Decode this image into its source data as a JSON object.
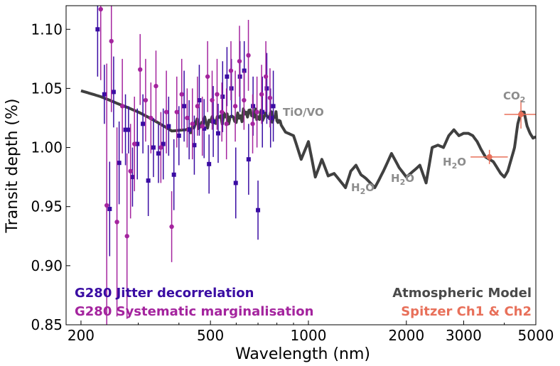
{
  "chart_data": {
    "type": "scatter",
    "xlabel": "Wavelength (nm)",
    "ylabel": "Transit depth (%)",
    "xscale": "log",
    "xlim": [
      180,
      5000
    ],
    "ylim": [
      0.85,
      1.12
    ],
    "xticks": [
      200,
      500,
      1000,
      2000,
      3000,
      5000
    ],
    "yticks": [
      0.85,
      0.9,
      0.95,
      1.0,
      1.05,
      1.1
    ],
    "ytick_labels": [
      "0.85",
      "0.90",
      "0.95",
      "1.00",
      "1.05",
      "1.10"
    ],
    "colors": {
      "jitter": "#3a0ca3",
      "marginal": "#a4249e",
      "model": "#2b2b2b",
      "spitzer": "#e8705a",
      "annotation": "#8c8c8c"
    },
    "legend": {
      "jitter": "G280 Jitter decorrelation",
      "marginal": "G280 Systematic marginalisation",
      "model": "Atmospheric Model",
      "spitzer": "Spitzer  Ch1 & Ch2"
    },
    "annotations": {
      "tio": "TiO/VO",
      "h2o_1": "H",
      "h2o_1_sub": "2",
      "h2o_1_end": "O",
      "h2o_2": "H",
      "h2o_2_sub": "2",
      "h2o_2_end": "O",
      "h2o_3": "H",
      "h2o_3_sub": "2",
      "h2o_3_end": "O",
      "co2": "CO",
      "co2_sub": "2"
    },
    "series": [
      {
        "name": "G280 Jitter decorrelation",
        "key": "jitter",
        "points": [
          [
            225,
            1.1,
            0.04
          ],
          [
            236,
            1.045,
            0.025
          ],
          [
            245,
            0.948,
            0.04
          ],
          [
            252,
            1.047,
            0.03
          ],
          [
            262,
            0.987,
            0.035
          ],
          [
            274,
            1.015,
            0.03
          ],
          [
            280,
            1.015,
            0.02
          ],
          [
            288,
            0.975,
            0.025
          ],
          [
            298,
            1.003,
            0.03
          ],
          [
            310,
            1.02,
            0.025
          ],
          [
            322,
            0.972,
            0.03
          ],
          [
            334,
            1.0,
            0.025
          ],
          [
            346,
            0.995,
            0.025
          ],
          [
            358,
            1.003,
            0.03
          ],
          [
            372,
            1.018,
            0.025
          ],
          [
            386,
            0.977,
            0.03
          ],
          [
            400,
            1.01,
            0.025
          ],
          [
            415,
            1.035,
            0.03
          ],
          [
            430,
            1.015,
            0.025
          ],
          [
            446,
            1.002,
            0.025
          ],
          [
            462,
            1.04,
            0.03
          ],
          [
            478,
            1.016,
            0.025
          ],
          [
            495,
            0.986,
            0.025
          ],
          [
            510,
            1.022,
            0.03
          ],
          [
            528,
            1.012,
            0.025
          ],
          [
            545,
            1.043,
            0.03
          ],
          [
            562,
            1.06,
            0.025
          ],
          [
            580,
            1.05,
            0.025
          ],
          [
            598,
            0.97,
            0.03
          ],
          [
            616,
            1.06,
            0.03
          ],
          [
            635,
            1.065,
            0.025
          ],
          [
            655,
            0.99,
            0.03
          ],
          [
            676,
            1.035,
            0.025
          ],
          [
            700,
            0.947,
            0.025
          ],
          [
            722,
            1.03,
            0.03
          ],
          [
            745,
            1.05,
            0.03
          ],
          [
            765,
            1.025,
            0.025
          ],
          [
            780,
            1.035,
            0.03
          ]
        ]
      },
      {
        "name": "G280 Systematic marginalisation",
        "key": "marginal",
        "points": [
          [
            230,
            1.117,
            0.06
          ],
          [
            240,
            0.951,
            0.12
          ],
          [
            248,
            1.09,
            0.06
          ],
          [
            258,
            0.937,
            0.08
          ],
          [
            268,
            1.035,
            0.04
          ],
          [
            277,
            0.925,
            0.07
          ],
          [
            284,
            0.98,
            0.04
          ],
          [
            292,
            1.003,
            0.04
          ],
          [
            304,
            1.066,
            0.03
          ],
          [
            316,
            1.04,
            0.035
          ],
          [
            328,
            1.025,
            0.03
          ],
          [
            340,
            1.052,
            0.03
          ],
          [
            352,
            1.0,
            0.03
          ],
          [
            366,
            1.03,
            0.035
          ],
          [
            380,
            0.933,
            0.03
          ],
          [
            394,
            1.03,
            0.03
          ],
          [
            408,
            1.045,
            0.03
          ],
          [
            424,
            1.025,
            0.025
          ],
          [
            440,
            1.02,
            0.03
          ],
          [
            456,
            1.035,
            0.025
          ],
          [
            472,
            1.018,
            0.025
          ],
          [
            490,
            1.06,
            0.03
          ],
          [
            506,
            1.04,
            0.025
          ],
          [
            524,
            1.045,
            0.03
          ],
          [
            542,
            1.03,
            0.025
          ],
          [
            560,
            1.02,
            0.03
          ],
          [
            578,
            1.065,
            0.025
          ],
          [
            596,
            1.035,
            0.03
          ],
          [
            614,
            1.073,
            0.03
          ],
          [
            634,
            1.04,
            0.025
          ],
          [
            654,
            1.078,
            0.03
          ],
          [
            674,
            1.02,
            0.025
          ],
          [
            695,
            1.03,
            0.03
          ],
          [
            718,
            1.045,
            0.025
          ],
          [
            740,
            1.06,
            0.03
          ],
          [
            762,
            1.042,
            0.025
          ]
        ]
      },
      {
        "name": "Spitzer  Ch1 & Ch2",
        "key": "spitzer",
        "points": [
          [
            3600,
            0.992,
            0.006,
            3150,
            4100
          ],
          [
            4500,
            1.028,
            0.012,
            4000,
            5000
          ]
        ]
      }
    ],
    "model": {
      "name": "Atmospheric Model",
      "x": [
        200,
        230,
        260,
        300,
        340,
        380,
        420,
        460,
        500,
        550,
        600,
        650,
        700,
        760,
        800,
        850,
        900,
        950,
        1000,
        1050,
        1100,
        1150,
        1200,
        1300,
        1350,
        1400,
        1450,
        1500,
        1600,
        1700,
        1800,
        1900,
        2000,
        2100,
        2200,
        2300,
        2400,
        2500,
        2600,
        2700,
        2800,
        2900,
        3000,
        3100,
        3200,
        3300,
        3400,
        3500,
        3600,
        3700,
        3800,
        3900,
        4000,
        4100,
        4200,
        4300,
        4400,
        4500,
        4600,
        4700,
        4800,
        4900,
        5000
      ],
      "y": [
        1.048,
        1.043,
        1.037,
        1.03,
        1.022,
        1.014,
        1.015,
        1.02,
        1.022,
        1.026,
        1.024,
        1.03,
        1.026,
        1.027,
        1.025,
        1.013,
        1.01,
        0.99,
        1.005,
        0.975,
        0.99,
        0.976,
        0.978,
        0.966,
        0.98,
        0.985,
        0.977,
        0.974,
        0.966,
        0.98,
        0.995,
        0.983,
        0.975,
        0.98,
        0.985,
        0.97,
        1.0,
        1.002,
        1.0,
        1.01,
        1.015,
        1.01,
        1.012,
        1.012,
        1.01,
        1.005,
        0.998,
        0.992,
        0.99,
        0.988,
        0.983,
        0.978,
        0.975,
        0.98,
        0.99,
        1.0,
        1.02,
        1.03,
        1.03,
        1.018,
        1.012,
        1.008,
        1.009
      ]
    }
  }
}
